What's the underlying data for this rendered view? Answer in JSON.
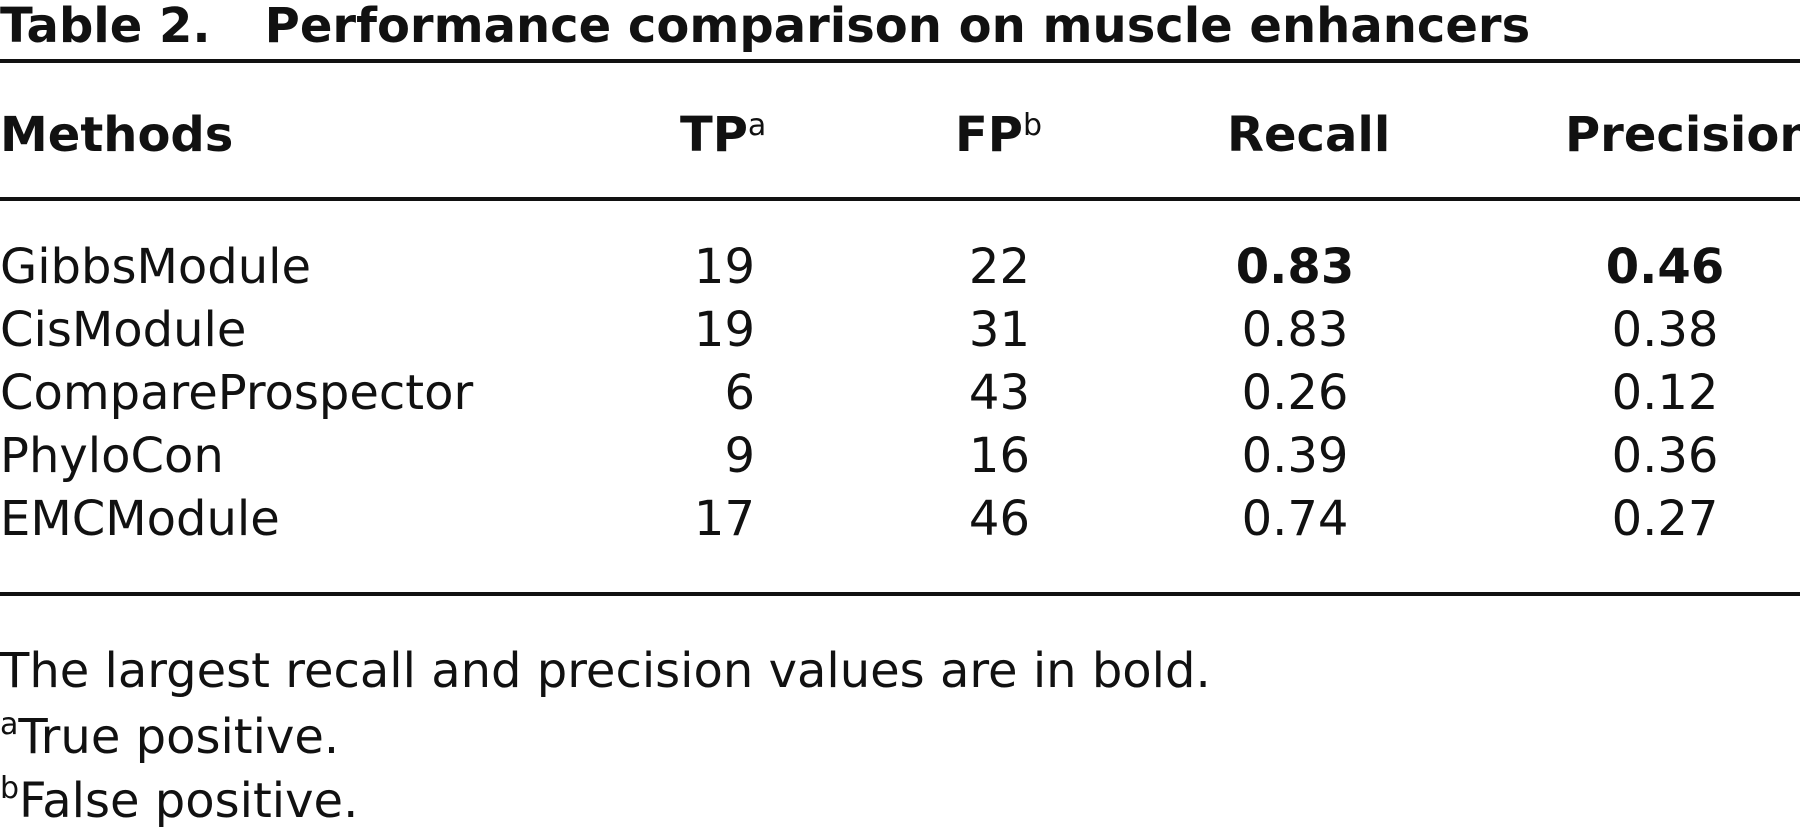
{
  "caption": {
    "label": "Table 2.",
    "title": "Performance comparison on muscle enhancers"
  },
  "columns": {
    "methods": "Methods",
    "tp": "TP",
    "tp_note": "a",
    "fp": "FP",
    "fp_note": "b",
    "recall": "Recall",
    "precision": "Precision"
  },
  "rows": [
    {
      "method": "GibbsModule",
      "tp": "19",
      "fp": "22",
      "recall": "0.83",
      "precision": "0.46",
      "recall_bold": true,
      "precision_bold": true
    },
    {
      "method": "CisModule",
      "tp": "19",
      "fp": "31",
      "recall": "0.83",
      "precision": "0.38"
    },
    {
      "method": "CompareProspector",
      "tp": "6",
      "fp": "43",
      "recall": "0.26",
      "precision": "0.12"
    },
    {
      "method": "PhyloCon",
      "tp": "9",
      "fp": "16",
      "recall": "0.39",
      "precision": "0.36"
    },
    {
      "method": "EMCModule",
      "tp": "17",
      "fp": "46",
      "recall": "0.74",
      "precision": "0.27"
    }
  ],
  "footnotes": {
    "note": "The largest recall and precision values are in bold.",
    "a_mark": "a",
    "a_text": "True positive.",
    "b_mark": "b",
    "b_text": "False positive."
  }
}
